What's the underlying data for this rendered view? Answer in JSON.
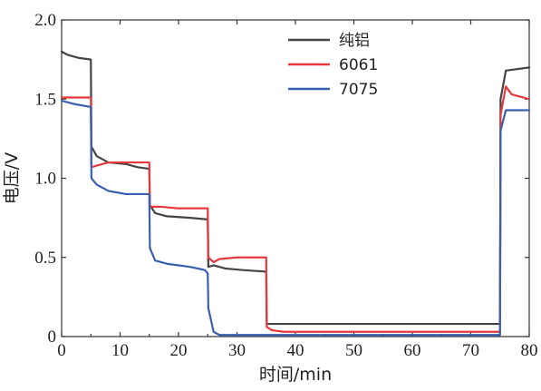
{
  "chart_data": {
    "type": "line",
    "title": "",
    "xlabel": "时间/min",
    "ylabel": "电压/V",
    "xlim": [
      0,
      80
    ],
    "ylim": [
      0,
      2.0
    ],
    "x_ticks": [
      0,
      10,
      20,
      30,
      40,
      50,
      60,
      70,
      80
    ],
    "y_ticks": [
      0,
      0.5,
      1.0,
      1.5,
      2.0
    ],
    "x_tick_labels": [
      "0",
      "10",
      "20",
      "30",
      "40",
      "50",
      "60",
      "70",
      "80"
    ],
    "y_tick_labels": [
      "0",
      "0.5",
      "1.0",
      "1.5",
      "2.0"
    ],
    "grid": false,
    "legend_position": "top-center",
    "series": [
      {
        "name": "纯铝",
        "color": "#444444",
        "points": [
          [
            0,
            1.8
          ],
          [
            1,
            1.78
          ],
          [
            3,
            1.76
          ],
          [
            5,
            1.75
          ],
          [
            5.1,
            1.2
          ],
          [
            6,
            1.14
          ],
          [
            8,
            1.1
          ],
          [
            11,
            1.09
          ],
          [
            13,
            1.07
          ],
          [
            15,
            1.06
          ],
          [
            15.1,
            0.83
          ],
          [
            16,
            0.78
          ],
          [
            18,
            0.76
          ],
          [
            22,
            0.75
          ],
          [
            25,
            0.74
          ],
          [
            25.1,
            0.44
          ],
          [
            26,
            0.45
          ],
          [
            28,
            0.43
          ],
          [
            31,
            0.42
          ],
          [
            35,
            0.41
          ],
          [
            35.1,
            0.08
          ],
          [
            40,
            0.08
          ],
          [
            50,
            0.08
          ],
          [
            60,
            0.08
          ],
          [
            70,
            0.08
          ],
          [
            75,
            0.08
          ],
          [
            75.1,
            1.5
          ],
          [
            76,
            1.68
          ],
          [
            80,
            1.7
          ]
        ]
      },
      {
        "name": "6061",
        "color": "#e8383d",
        "points": [
          [
            0,
            1.51
          ],
          [
            2,
            1.51
          ],
          [
            5,
            1.51
          ],
          [
            5.1,
            1.07
          ],
          [
            6,
            1.08
          ],
          [
            8,
            1.1
          ],
          [
            10,
            1.1
          ],
          [
            15,
            1.1
          ],
          [
            15.1,
            0.82
          ],
          [
            17,
            0.82
          ],
          [
            20,
            0.81
          ],
          [
            25,
            0.81
          ],
          [
            25.1,
            0.5
          ],
          [
            26,
            0.47
          ],
          [
            27,
            0.49
          ],
          [
            30,
            0.5
          ],
          [
            35,
            0.5
          ],
          [
            35.1,
            0.06
          ],
          [
            36,
            0.04
          ],
          [
            38,
            0.03
          ],
          [
            45,
            0.03
          ],
          [
            60,
            0.03
          ],
          [
            70,
            0.03
          ],
          [
            75,
            0.03
          ],
          [
            75.1,
            1.4
          ],
          [
            76,
            1.58
          ],
          [
            77,
            1.53
          ],
          [
            80,
            1.5
          ]
        ]
      },
      {
        "name": "7075",
        "color": "#3b5fb0",
        "points": [
          [
            0,
            1.49
          ],
          [
            2,
            1.47
          ],
          [
            5,
            1.45
          ],
          [
            5.1,
            1.0
          ],
          [
            6,
            0.96
          ],
          [
            8,
            0.92
          ],
          [
            11,
            0.9
          ],
          [
            15,
            0.9
          ],
          [
            15.1,
            0.56
          ],
          [
            16,
            0.48
          ],
          [
            18,
            0.46
          ],
          [
            22,
            0.44
          ],
          [
            24.5,
            0.42
          ],
          [
            25,
            0.4
          ],
          [
            25.1,
            0.18
          ],
          [
            26,
            0.03
          ],
          [
            27,
            0.01
          ],
          [
            30,
            0.01
          ],
          [
            40,
            0.01
          ],
          [
            50,
            0.01
          ],
          [
            60,
            0.01
          ],
          [
            70,
            0.01
          ],
          [
            75,
            0.01
          ],
          [
            75.1,
            1.3
          ],
          [
            76,
            1.43
          ],
          [
            80,
            1.43
          ]
        ]
      }
    ]
  }
}
